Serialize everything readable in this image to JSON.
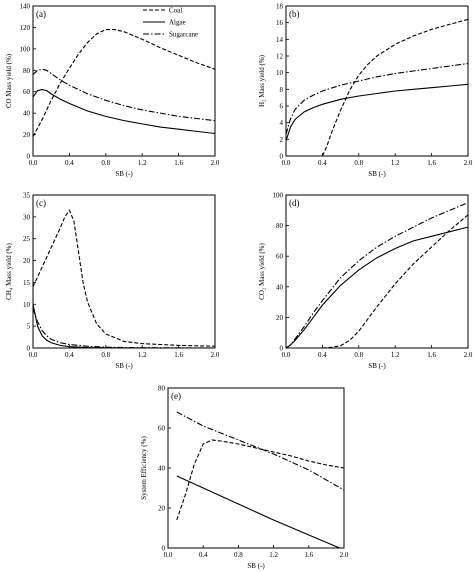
{
  "legend": {
    "entries": [
      {
        "name": "Coal",
        "dash": "4,2"
      },
      {
        "name": "Algae",
        "dash": ""
      },
      {
        "name": "Sugarcane",
        "dash": "6,2,1.5,2"
      }
    ]
  },
  "chart_data": [
    {
      "type": "line",
      "panel": "(a)",
      "xlabel": "SB (-)",
      "ylabel": "CO Mass yield (%)",
      "xlim": [
        0,
        2.0
      ],
      "ylim": [
        0,
        140
      ],
      "xticks": [
        "0.0",
        "0.4",
        "0.8",
        "1.2",
        "1.6",
        "2.0"
      ],
      "yticks": [
        "0",
        "20",
        "40",
        "60",
        "80",
        "100",
        "120",
        "140"
      ],
      "grid": false,
      "series": [
        {
          "name": "Coal",
          "x": [
            0,
            0.1,
            0.2,
            0.3,
            0.4,
            0.5,
            0.6,
            0.7,
            0.8,
            0.9,
            1.0,
            1.2,
            1.4,
            1.6,
            1.8,
            2.0
          ],
          "y": [
            18,
            34,
            52,
            68,
            82,
            95,
            106,
            114,
            118,
            118,
            116,
            109,
            101,
            94,
            87,
            81
          ]
        },
        {
          "name": "Algae",
          "x": [
            0,
            0.05,
            0.1,
            0.15,
            0.2,
            0.3,
            0.4,
            0.6,
            0.8,
            1.0,
            1.2,
            1.4,
            1.6,
            1.8,
            2.0
          ],
          "y": [
            55,
            61,
            62,
            61,
            58,
            53,
            49,
            42,
            37,
            33,
            30,
            27,
            25,
            23,
            21
          ]
        },
        {
          "name": "Sugarcane",
          "x": [
            0,
            0.05,
            0.1,
            0.15,
            0.2,
            0.3,
            0.4,
            0.6,
            0.8,
            1.0,
            1.2,
            1.4,
            1.6,
            1.8,
            2.0
          ],
          "y": [
            76,
            80,
            81,
            80,
            77,
            71,
            66,
            58,
            52,
            47,
            43,
            40,
            37,
            35,
            33
          ]
        }
      ]
    },
    {
      "type": "line",
      "panel": "(b)",
      "xlabel": "SB (-)",
      "ylabel": "H₂ Mass yield (%)",
      "xlim": [
        0,
        2.0
      ],
      "ylim": [
        0,
        18
      ],
      "xticks": [
        "0.0",
        "0.4",
        "0.8",
        "1.2",
        "1.6",
        "2.0"
      ],
      "yticks": [
        "0",
        "2",
        "4",
        "6",
        "8",
        "10",
        "12",
        "14",
        "16",
        "18"
      ],
      "grid": false,
      "series": [
        {
          "name": "Coal",
          "x": [
            0.4,
            0.45,
            0.5,
            0.6,
            0.7,
            0.8,
            0.9,
            1.0,
            1.2,
            1.4,
            1.6,
            1.8,
            2.0
          ],
          "y": [
            0,
            1.2,
            2.8,
            5.5,
            7.9,
            9.7,
            11.0,
            12.0,
            13.4,
            14.4,
            15.2,
            15.8,
            16.4
          ]
        },
        {
          "name": "Algae",
          "x": [
            0,
            0.05,
            0.1,
            0.2,
            0.3,
            0.4,
            0.6,
            0.8,
            1.0,
            1.2,
            1.4,
            1.6,
            1.8,
            2.0
          ],
          "y": [
            1.8,
            3.5,
            4.4,
            5.3,
            5.8,
            6.2,
            6.8,
            7.2,
            7.5,
            7.8,
            8.0,
            8.2,
            8.4,
            8.6
          ]
        },
        {
          "name": "Sugarcane",
          "x": [
            0,
            0.05,
            0.1,
            0.2,
            0.3,
            0.4,
            0.6,
            0.8,
            1.0,
            1.2,
            1.4,
            1.6,
            1.8,
            2.0
          ],
          "y": [
            2.6,
            4.5,
            5.6,
            6.7,
            7.3,
            7.8,
            8.5,
            9.0,
            9.5,
            9.9,
            10.2,
            10.5,
            10.8,
            11.1
          ]
        }
      ]
    },
    {
      "type": "line",
      "panel": "(c)",
      "xlabel": "SB (-)",
      "ylabel": "CH₄ Mass yield (%)",
      "xlim": [
        0,
        2.0
      ],
      "ylim": [
        0,
        35
      ],
      "xticks": [
        "0.0",
        "0.4",
        "0.8",
        "1.2",
        "1.6",
        "2.0"
      ],
      "yticks": [
        "0",
        "5",
        "10",
        "15",
        "20",
        "25",
        "30",
        "35"
      ],
      "grid": false,
      "series": [
        {
          "name": "Coal",
          "x": [
            0,
            0.1,
            0.2,
            0.3,
            0.35,
            0.4,
            0.45,
            0.5,
            0.55,
            0.6,
            0.7,
            0.8,
            1.0,
            1.2,
            1.4,
            1.6,
            1.8,
            2.0
          ],
          "y": [
            14,
            18.5,
            23,
            27.5,
            30,
            31.5,
            29,
            22,
            15,
            10.5,
            5.5,
            3.2,
            1.5,
            1.0,
            0.8,
            0.6,
            0.5,
            0.4
          ]
        },
        {
          "name": "Algae",
          "x": [
            0,
            0.05,
            0.1,
            0.15,
            0.2,
            0.3,
            0.4,
            0.6,
            0.8,
            1.0,
            1.4,
            2.0
          ],
          "y": [
            10,
            5,
            2.8,
            1.8,
            1.2,
            0.6,
            0.3,
            0.1,
            0.05,
            0.02,
            0,
            0
          ]
        },
        {
          "name": "Sugarcane",
          "x": [
            0,
            0.05,
            0.1,
            0.15,
            0.2,
            0.3,
            0.4,
            0.6,
            0.8,
            1.0,
            1.4,
            2.0
          ],
          "y": [
            9,
            6,
            4,
            2.8,
            2.0,
            1.2,
            0.8,
            0.4,
            0.2,
            0.1,
            0.05,
            0
          ]
        }
      ]
    },
    {
      "type": "line",
      "panel": "(d)",
      "xlabel": "SB (-)",
      "ylabel": "CO₂ Mass yield (%)",
      "xlim": [
        0,
        2.0
      ],
      "ylim": [
        0,
        100
      ],
      "xticks": [
        "0.0",
        "0.4",
        "0.8",
        "1.2",
        "1.6",
        "2.0"
      ],
      "yticks": [
        "0",
        "20",
        "40",
        "60",
        "80",
        "100"
      ],
      "grid": false,
      "series": [
        {
          "name": "Coal",
          "x": [
            0.4,
            0.5,
            0.6,
            0.7,
            0.8,
            0.9,
            1.0,
            1.2,
            1.4,
            1.6,
            1.8,
            2.0
          ],
          "y": [
            0,
            0.5,
            1.5,
            5,
            11,
            19,
            27,
            42,
            55,
            66,
            77,
            87
          ]
        },
        {
          "name": "Algae",
          "x": [
            0,
            0.05,
            0.1,
            0.2,
            0.3,
            0.4,
            0.6,
            0.8,
            1.0,
            1.2,
            1.4,
            1.6,
            1.8,
            2.0
          ],
          "y": [
            0,
            2,
            5,
            12,
            20,
            28,
            41,
            51,
            59,
            65,
            70,
            73,
            76,
            79
          ]
        },
        {
          "name": "Sugarcane",
          "x": [
            0,
            0.05,
            0.1,
            0.2,
            0.3,
            0.4,
            0.6,
            0.8,
            1.0,
            1.2,
            1.4,
            1.6,
            1.8,
            2.0
          ],
          "y": [
            0,
            2,
            6,
            14,
            23,
            31,
            46,
            57,
            66,
            73,
            79,
            85,
            90,
            95
          ]
        }
      ]
    },
    {
      "type": "line",
      "panel": "(e)",
      "xlabel": "SB (-)",
      "ylabel": "System Efficiency (%)",
      "xlim": [
        0,
        2.0
      ],
      "ylim": [
        0,
        80
      ],
      "xticks": [
        "0.0",
        "0.4",
        "0.8",
        "1.2",
        "1.6",
        "2.0"
      ],
      "yticks": [
        "0",
        "20",
        "40",
        "60",
        "80"
      ],
      "grid": false,
      "series": [
        {
          "name": "Coal",
          "x": [
            0.1,
            0.2,
            0.3,
            0.4,
            0.5,
            0.6,
            0.8,
            1.0,
            1.2,
            1.4,
            1.6,
            1.8,
            2.0
          ],
          "y": [
            14,
            27,
            42,
            52,
            54,
            53.5,
            52,
            50,
            48,
            46,
            43.5,
            41.5,
            40
          ]
        },
        {
          "name": "Algae",
          "x": [
            0.1,
            0.4,
            0.8,
            1.2,
            1.6,
            1.95
          ],
          "y": [
            36,
            30,
            22,
            14,
            6.5,
            0
          ]
        },
        {
          "name": "Sugarcane",
          "x": [
            0.1,
            0.4,
            0.8,
            1.2,
            1.6,
            2.0
          ],
          "y": [
            68,
            61,
            54,
            47,
            39,
            29
          ]
        }
      ]
    }
  ]
}
